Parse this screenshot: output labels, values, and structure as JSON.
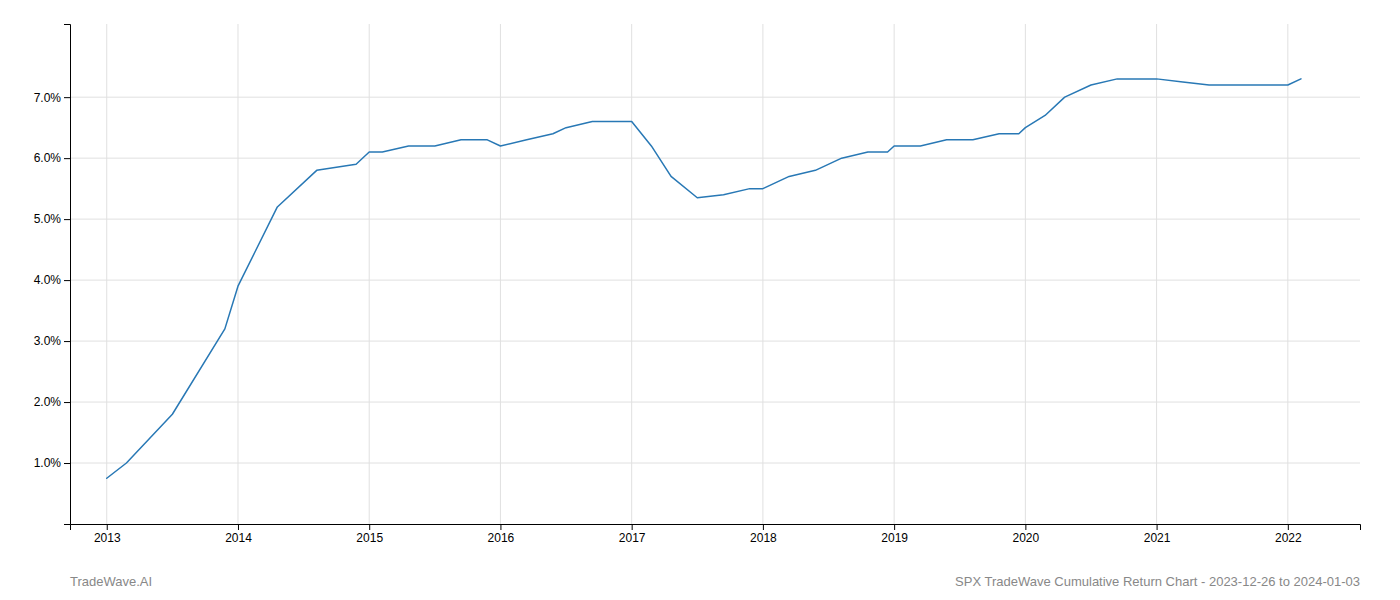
{
  "chart_data": {
    "type": "line",
    "title": "SPX TradeWave Cumulative Return Chart - 2023-12-26 to 2024-01-03",
    "annotations": [
      "TradeWave.AI"
    ],
    "x": [
      2013.0,
      2013.15,
      2013.5,
      2013.9,
      2014.0,
      2014.3,
      2014.6,
      2014.9,
      2015.0,
      2015.1,
      2015.3,
      2015.5,
      2015.7,
      2015.9,
      2016.0,
      2016.2,
      2016.4,
      2016.5,
      2016.7,
      2016.85,
      2017.0,
      2017.15,
      2017.3,
      2017.5,
      2017.7,
      2017.9,
      2018.0,
      2018.2,
      2018.4,
      2018.6,
      2018.8,
      2018.95,
      2019.0,
      2019.2,
      2019.4,
      2019.6,
      2019.8,
      2019.95,
      2020.0,
      2020.15,
      2020.3,
      2020.5,
      2020.7,
      2020.85,
      2021.0,
      2021.2,
      2021.4,
      2021.6,
      2021.8,
      2021.95,
      2022.0,
      2022.1
    ],
    "values": [
      0.0075,
      0.01,
      0.018,
      0.032,
      0.039,
      0.052,
      0.058,
      0.059,
      0.061,
      0.061,
      0.062,
      0.062,
      0.063,
      0.063,
      0.062,
      0.063,
      0.064,
      0.065,
      0.066,
      0.066,
      0.066,
      0.062,
      0.057,
      0.0535,
      0.054,
      0.055,
      0.055,
      0.057,
      0.058,
      0.06,
      0.061,
      0.061,
      0.062,
      0.062,
      0.063,
      0.063,
      0.064,
      0.064,
      0.065,
      0.067,
      0.07,
      0.072,
      0.073,
      0.073,
      0.073,
      0.0725,
      0.072,
      0.072,
      0.072,
      0.072,
      0.072,
      0.073
    ],
    "color": "#2878b5",
    "xlim": [
      2012.72,
      2022.55
    ],
    "ylim": [
      0.0,
      0.082
    ],
    "xticks": [
      2013,
      2014,
      2015,
      2016,
      2017,
      2018,
      2019,
      2020,
      2021,
      2022
    ],
    "yticks": [
      {
        "value": 0.01,
        "label": "1.0%"
      },
      {
        "value": 0.02,
        "label": "2.0%"
      },
      {
        "value": 0.03,
        "label": "3.0%"
      },
      {
        "value": 0.04,
        "label": "4.0%"
      },
      {
        "value": 0.05,
        "label": "5.0%"
      },
      {
        "value": 0.06,
        "label": "6.0%"
      },
      {
        "value": 0.07,
        "label": "7.0%"
      }
    ],
    "grid": true
  }
}
